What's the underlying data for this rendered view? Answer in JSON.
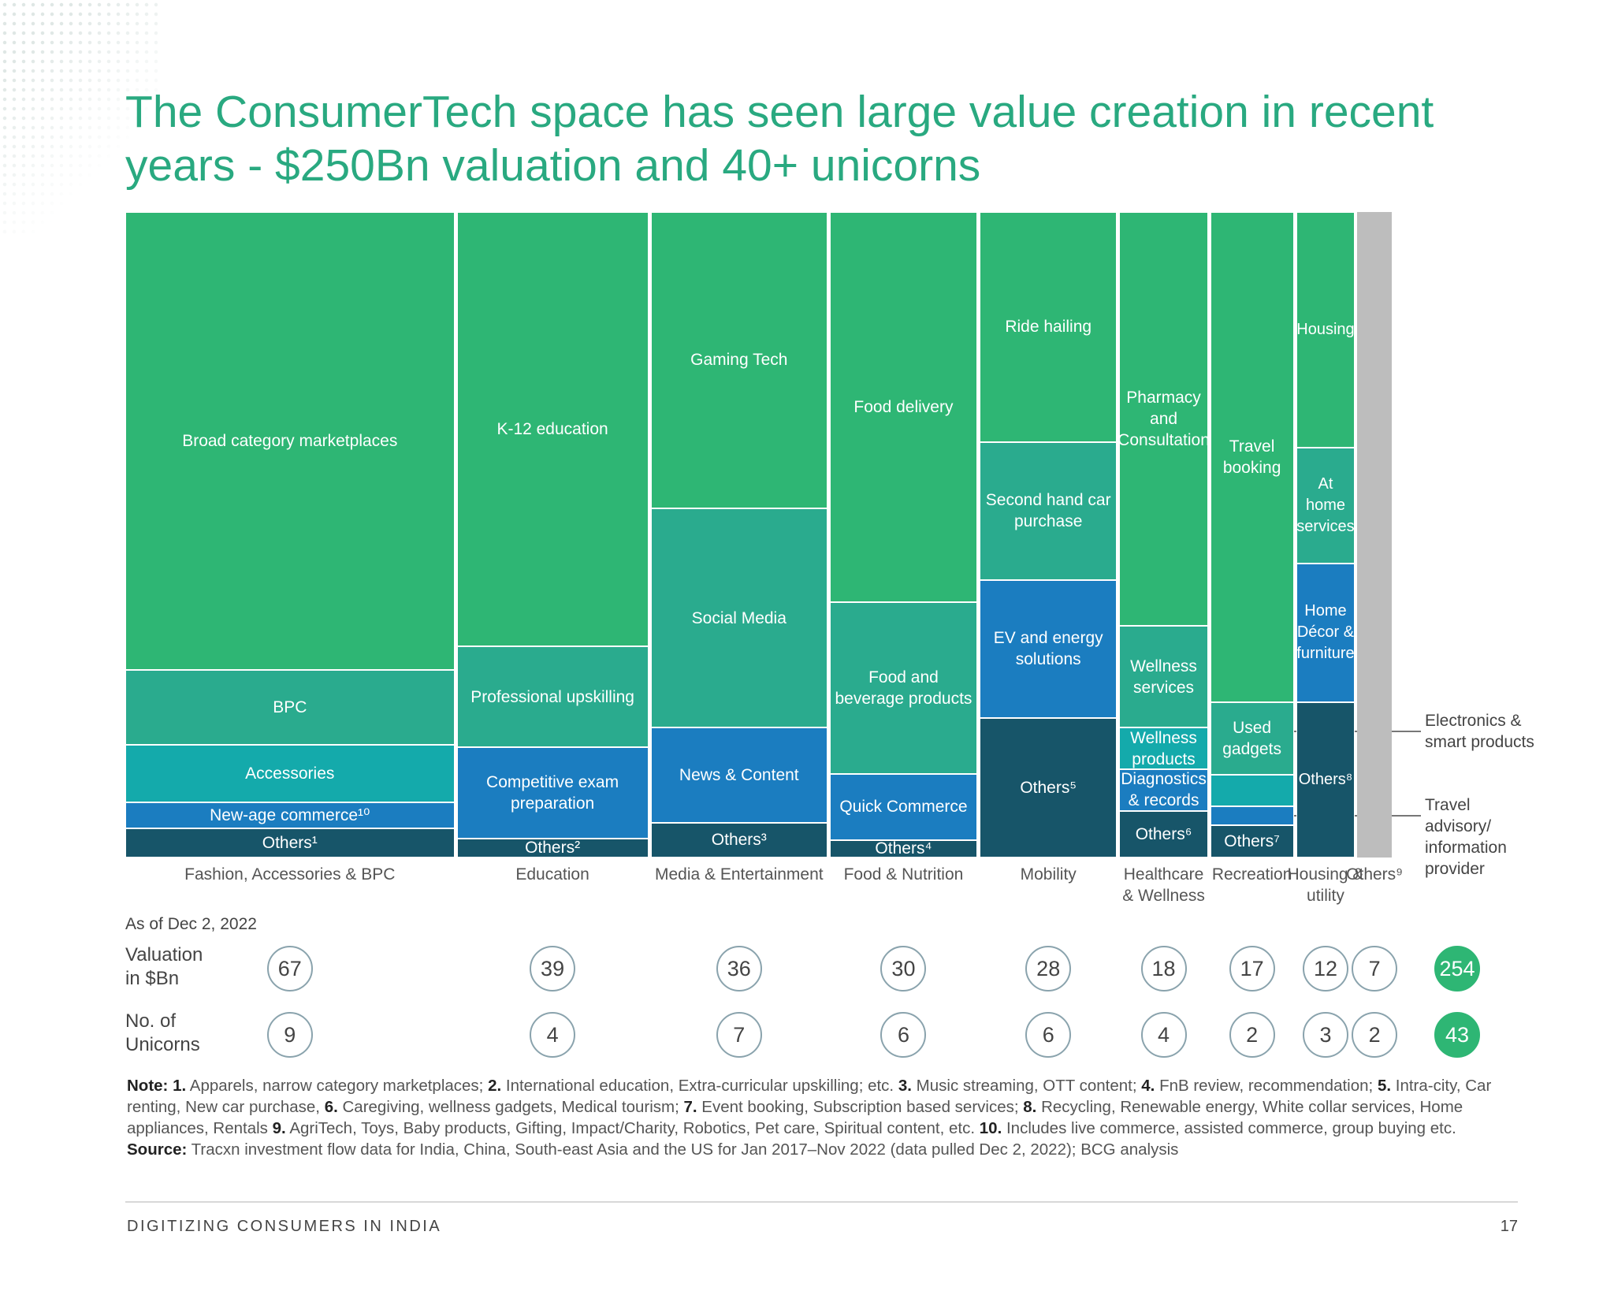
{
  "chart_data": {
    "type": "marimekko",
    "title": "The ConsumerTech space has seen large value creation in recent years - $250Bn valuation and 40+ unicorns",
    "columns": [
      {
        "name": "Fashion, Accessories & BPC",
        "valuation": 67,
        "unicorns": 9,
        "segments": [
          {
            "name": "Broad category marketplaces",
            "share": 71,
            "color": "#2eb674"
          },
          {
            "name": "BPC",
            "share": 11.5,
            "color": "#2aab8e"
          },
          {
            "name": "Accessories",
            "share": 9,
            "color": "#14aaab"
          },
          {
            "name": "New-age commerce¹⁰",
            "share": 4,
            "color": "#1b7dc0"
          },
          {
            "name": "Others¹",
            "share": 4.5,
            "color": "#175569"
          }
        ]
      },
      {
        "name": "Education",
        "valuation": 39,
        "unicorns": 4,
        "segments": [
          {
            "name": "K-12 education",
            "share": 67.3,
            "color": "#2eb674"
          },
          {
            "name": "Professional upskilling",
            "share": 15.6,
            "color": "#2aab8e"
          },
          {
            "name": "Competitive exam preparation",
            "share": 14.2,
            "color": "#1b7dc0"
          },
          {
            "name": "Others²",
            "share": 2.9,
            "color": "#175569"
          }
        ]
      },
      {
        "name": "Media & Entertainment",
        "valuation": 36,
        "unicorns": 7,
        "segments": [
          {
            "name": "Gaming Tech",
            "share": 45.9,
            "color": "#2eb674"
          },
          {
            "name": "Social Media",
            "share": 34,
            "color": "#2aab8e"
          },
          {
            "name": "News & Content",
            "share": 14.7,
            "color": "#1b7dc0"
          },
          {
            "name": "Others³",
            "share": 5.4,
            "color": "#175569"
          }
        ]
      },
      {
        "name": "Food & Nutrition",
        "valuation": 30,
        "unicorns": 6,
        "segments": [
          {
            "name": "Food delivery",
            "share": 60.4,
            "color": "#2eb674"
          },
          {
            "name": "Food and beverage products",
            "share": 26.6,
            "color": "#2aab8e"
          },
          {
            "name": "Quick Commerce",
            "share": 10.3,
            "color": "#1b7dc0"
          },
          {
            "name": "Others⁴",
            "share": 2.7,
            "color": "#175569"
          }
        ]
      },
      {
        "name": "Mobility",
        "valuation": 28,
        "unicorns": 6,
        "segments": [
          {
            "name": "Ride hailing",
            "share": 35.6,
            "color": "#2eb674"
          },
          {
            "name": "Second hand car purchase",
            "share": 21.4,
            "color": "#2aab8e"
          },
          {
            "name": "EV and energy solutions",
            "share": 21.4,
            "color": "#1b7dc0"
          },
          {
            "name": "Others⁵",
            "share": 21.6,
            "color": "#175569"
          }
        ]
      },
      {
        "name": "Healthcare & Wellness",
        "valuation": 18,
        "unicorns": 4,
        "segments": [
          {
            "name": "Pharmacy and Consultation",
            "share": 64.1,
            "color": "#2eb674"
          },
          {
            "name": "Wellness services",
            "share": 15.8,
            "color": "#2aab8e"
          },
          {
            "name": "Wellness products",
            "share": 6.4,
            "color": "#14aaab"
          },
          {
            "name": "Diagnostics & records",
            "share": 6.5,
            "color": "#1b7dc0"
          },
          {
            "name": "Others⁶",
            "share": 7.2,
            "color": "#175569"
          }
        ]
      },
      {
        "name": "Recreation",
        "valuation": 17,
        "unicorns": 2,
        "segments": [
          {
            "name": "Travel booking",
            "share": 75.9,
            "color": "#2eb674"
          },
          {
            "name": "Used gadgets",
            "share": 11.3,
            "color": "#2aab8e"
          },
          {
            "name": "Electronics & smart products",
            "share": 4.9,
            "color": "#14aaab",
            "callout": true
          },
          {
            "name": "Travel advisory/ information provider",
            "share": 2.9,
            "color": "#1b7dc0",
            "callout": true
          },
          {
            "name": "Others⁷",
            "share": 5,
            "color": "#175569"
          }
        ]
      },
      {
        "name": "Housing & utility",
        "valuation": 12,
        "unicorns": 3,
        "segments": [
          {
            "name": "Housing",
            "share": 36.5,
            "color": "#2eb674"
          },
          {
            "name": "At home services",
            "share": 17.9,
            "color": "#2aab8e"
          },
          {
            "name": "Home Décor & furniture",
            "share": 21.5,
            "color": "#1b7dc0"
          },
          {
            "name": "Others⁸",
            "share": 24.1,
            "color": "#175569"
          }
        ]
      },
      {
        "name": "Others⁹",
        "valuation": 7,
        "unicorns": 2,
        "color": "#bdbdbd"
      }
    ],
    "as_of": "As of Dec 2, 2022",
    "valuation_label": "Valuation in $Bn",
    "unicorns_label": "No. of Unicorns",
    "total_valuation": 254,
    "total_unicorns": 43,
    "total_color": "#2eb674",
    "note_label": "Note:",
    "notes": [
      {
        "number": "1.",
        "text": "Apparels, narrow category marketplaces;"
      },
      {
        "number": "2.",
        "text": "International education, Extra-curricular upskilling; etc."
      },
      {
        "number": "3.",
        "text": "Music streaming, OTT content;"
      },
      {
        "number": "4.",
        "text": "FnB review, recommendation;"
      },
      {
        "number": "5.",
        "text": "Intra-city, Car renting, New car purchase,"
      },
      {
        "number": "6.",
        "text": "Caregiving, wellness gadgets, Medical tourism;"
      },
      {
        "number": "7.",
        "text": "Event booking, Subscription based services;"
      },
      {
        "number": "8.",
        "text": "Recycling, Renewable energy, White collar services, Home appliances, Rentals"
      },
      {
        "number": "9.",
        "text": "AgriTech, Toys, Baby products, Gifting, Impact/Charity, Robotics, Pet care, Spiritual content, etc."
      },
      {
        "number": "10.",
        "text": "Includes live commerce, assisted commerce, group buying etc."
      }
    ],
    "source_label": "Source:",
    "source": "Tracxn investment flow data for India, China, South-east Asia and the US for Jan 2017–Nov 2022 (data pulled Dec 2, 2022); BCG analysis",
    "footer": "DIGITIZING CONSUMERS IN INDIA",
    "page_number": 17
  }
}
